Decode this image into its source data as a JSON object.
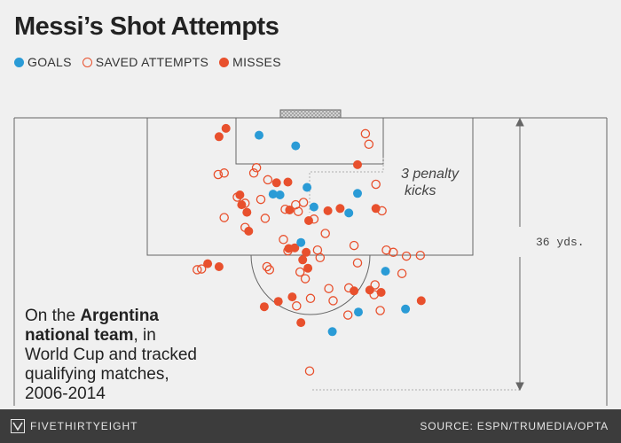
{
  "title": "Messi’s Shot Attempts",
  "legend": {
    "goals": "GOALS",
    "saved": "SAVED ATTEMPTS",
    "misses": "MISSES"
  },
  "colors": {
    "goal": "#2a9bd6",
    "miss": "#e8502d",
    "line": "#666666",
    "guide": "#bbbbbb",
    "footer": "#3c3c3c"
  },
  "annotations": {
    "penalty_line1": "3 penalty",
    "penalty_line2": "kicks",
    "distance": "36 yds."
  },
  "caption": {
    "prefix": "On the ",
    "bold": "Argentina national team",
    "suffix": ", in World Cup and tracked qualifying matches, 2006-2014"
  },
  "footer": {
    "brand": "FIVETHIRTYEIGHT",
    "brand_icon": "fivethirtyeight-logo-icon",
    "source": "SOURCE: ESPN/TRUMEDIA/OPTA"
  },
  "chart_data": {
    "type": "scatter",
    "x_axis": "yards from left edge of plotted pitch section (goal centered at ~35.6)",
    "y_axis": "yards from goal line",
    "xlim": [
      0,
      68
    ],
    "ylim": [
      0,
      36
    ],
    "series": [
      {
        "name": "GOALS",
        "points": [
          [
            28.1,
            2.3
          ],
          [
            32.3,
            3.7
          ],
          [
            29.7,
            10.1
          ],
          [
            33.6,
            9.2
          ],
          [
            30.5,
            10.2
          ],
          [
            39.4,
            10.0
          ],
          [
            34.4,
            11.8
          ],
          [
            38.4,
            12.6
          ],
          [
            32.9,
            16.5
          ],
          [
            42.6,
            20.3
          ],
          [
            39.5,
            25.7
          ],
          [
            44.9,
            25.3
          ],
          [
            36.5,
            28.3
          ]
        ]
      },
      {
        "name": "SAVED ATTEMPTS",
        "points": [
          [
            40.3,
            2.1
          ],
          [
            40.7,
            3.5
          ],
          [
            27.8,
            6.6
          ],
          [
            24.1,
            7.3
          ],
          [
            23.4,
            7.5
          ],
          [
            27.5,
            7.3
          ],
          [
            29.1,
            8.2
          ],
          [
            41.5,
            8.8
          ],
          [
            25.6,
            10.5
          ],
          [
            26.5,
            11.3
          ],
          [
            28.3,
            10.8
          ],
          [
            32.3,
            11.5
          ],
          [
            33.2,
            11.2
          ],
          [
            42.2,
            12.3
          ],
          [
            31.1,
            12.1
          ],
          [
            32.6,
            12.4
          ],
          [
            24.1,
            13.2
          ],
          [
            28.8,
            13.3
          ],
          [
            34.4,
            13.4
          ],
          [
            26.5,
            14.5
          ],
          [
            35.7,
            15.3
          ],
          [
            30.9,
            16.1
          ],
          [
            39.0,
            16.9
          ],
          [
            31.4,
            17.6
          ],
          [
            34.8,
            17.5
          ],
          [
            42.7,
            17.5
          ],
          [
            43.5,
            17.8
          ],
          [
            45.0,
            18.3
          ],
          [
            46.6,
            18.2
          ],
          [
            35.1,
            18.5
          ],
          [
            39.4,
            19.2
          ],
          [
            21.5,
            20.0
          ],
          [
            29.0,
            19.7
          ],
          [
            29.3,
            20.1
          ],
          [
            21.0,
            20.1
          ],
          [
            32.8,
            20.4
          ],
          [
            33.4,
            21.3
          ],
          [
            44.5,
            20.6
          ],
          [
            41.4,
            22.1
          ],
          [
            36.1,
            22.6
          ],
          [
            38.4,
            22.5
          ],
          [
            41.3,
            23.4
          ],
          [
            34.0,
            23.9
          ],
          [
            36.6,
            24.2
          ],
          [
            32.4,
            24.9
          ],
          [
            42.0,
            25.5
          ],
          [
            38.3,
            26.1
          ],
          [
            33.9,
            33.5
          ]
        ]
      },
      {
        "name": "MISSES",
        "points": [
          [
            24.3,
            1.4
          ],
          [
            23.5,
            2.5
          ],
          [
            39.4,
            6.2
          ],
          [
            31.4,
            8.5
          ],
          [
            30.1,
            8.6
          ],
          [
            25.9,
            10.2
          ],
          [
            26.1,
            11.5
          ],
          [
            26.7,
            12.5
          ],
          [
            31.6,
            12.2
          ],
          [
            36.0,
            12.3
          ],
          [
            37.4,
            12.0
          ],
          [
            41.5,
            12.0
          ],
          [
            33.8,
            13.6
          ],
          [
            26.9,
            15.0
          ],
          [
            31.5,
            17.3
          ],
          [
            32.2,
            17.2
          ],
          [
            33.5,
            17.8
          ],
          [
            33.1,
            18.8
          ],
          [
            33.7,
            19.9
          ],
          [
            22.2,
            19.3
          ],
          [
            23.5,
            19.7
          ],
          [
            40.8,
            22.8
          ],
          [
            39.0,
            22.9
          ],
          [
            42.1,
            23.1
          ],
          [
            31.9,
            23.7
          ],
          [
            46.7,
            24.2
          ],
          [
            30.3,
            24.3
          ],
          [
            28.7,
            25.0
          ],
          [
            32.9,
            27.1
          ]
        ]
      }
    ]
  }
}
